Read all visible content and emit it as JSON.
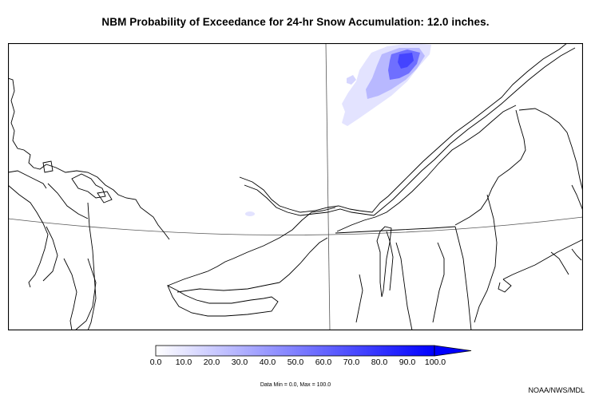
{
  "title": "NBM Probability of Exceedance for 24-hr Snow Accumulation: 12.0 inches.",
  "colorbar": {
    "ticks": [
      "0.0",
      "10.0",
      "20.0",
      "30.0",
      "40.0",
      "50.0",
      "60.0",
      "70.0",
      "80.0",
      "90.0",
      "100.0"
    ],
    "colors": [
      "#ffffff",
      "#e6e6ff",
      "#ccccff",
      "#b3b3ff",
      "#9999ff",
      "#8080ff",
      "#6666ff",
      "#4d4dff",
      "#3333ff",
      "#1a1aff",
      "#0000ff"
    ],
    "extend": "max"
  },
  "data_minmax": "Data Min = 0.0, Max = 100.0",
  "credit": "NOAA/NWS/MDL",
  "colors": {
    "map_border": "#000000",
    "coastline": "#000000",
    "graticule": "#555555",
    "snow_light": "#e6e6ff",
    "snow_mid": "#9999ff",
    "snow_high": "#3333ff"
  }
}
